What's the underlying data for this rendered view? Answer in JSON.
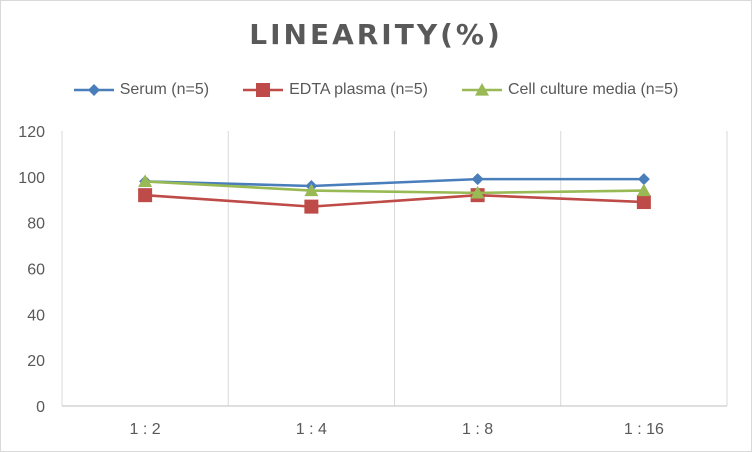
{
  "chart_data": {
    "type": "line",
    "title": "LINEARITY(%)",
    "categories": [
      "1:2",
      "1:4",
      "1:8",
      "1:16"
    ],
    "ylim": [
      0,
      120
    ],
    "yticks": [
      0,
      20,
      40,
      60,
      80,
      100,
      120
    ],
    "grid": "vertical",
    "legend_position": "top",
    "series": [
      {
        "name": "Serum (n=5)",
        "color": "#4a7ebb",
        "marker": "diamond",
        "values": [
          98,
          96,
          99,
          99
        ]
      },
      {
        "name": "EDTA plasma (n=5)",
        "color": "#be4b48",
        "marker": "square",
        "values": [
          92,
          87,
          92,
          89
        ]
      },
      {
        "name": "Cell culture media (n=5)",
        "color": "#98b954",
        "marker": "triangle",
        "values": [
          98,
          94,
          93,
          94
        ]
      }
    ]
  }
}
